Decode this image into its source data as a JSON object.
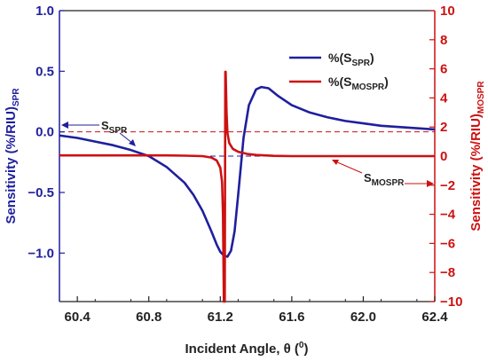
{
  "chart_data": {
    "type": "line",
    "x_axis": {
      "label_main": "Incident Angle, θ (",
      "label_sup": "0",
      "label_end": ")",
      "range": [
        60.3,
        62.4
      ],
      "ticks": [
        60.4,
        60.8,
        61.2,
        61.6,
        62.0,
        62.4
      ],
      "tick_labels": [
        "60.4",
        "60.8",
        "61.2",
        "61.6",
        "62.0",
        "62.4"
      ]
    },
    "y_left": {
      "label_main": "Sensitivity (%/RIU)",
      "label_sub": "SPR",
      "range": [
        -1.4,
        1.0
      ],
      "ticks": [
        1.0,
        0.5,
        0.0,
        -0.5,
        -1.0
      ],
      "tick_labels": [
        "1.0",
        "0.5",
        "0.0",
        "−0.5",
        "−1.0"
      ],
      "color": "#1f1f9e"
    },
    "y_right": {
      "label_main": "Sensitivity (%/RIU)",
      "label_sub": "MOSPR",
      "range": [
        -10,
        10
      ],
      "ticks": [
        10,
        8,
        6,
        4,
        2,
        0,
        -2,
        -4,
        -6,
        -8,
        -10
      ],
      "tick_labels": [
        "10",
        "8",
        "6",
        "4",
        "2",
        "0",
        "−2",
        "−4",
        "−6",
        "−8",
        "−10"
      ],
      "color": "#cc1111"
    },
    "series": [
      {
        "name_main": "%(S",
        "name_sub": "SPR",
        "name_end": ")",
        "axis": "left",
        "color": "#1f1f9e",
        "x": [
          60.3,
          60.4,
          60.5,
          60.6,
          60.7,
          60.8,
          60.9,
          61.0,
          61.05,
          61.1,
          61.15,
          61.18,
          61.2,
          61.22,
          61.24,
          61.26,
          61.28,
          61.3,
          61.33,
          61.36,
          61.4,
          61.43,
          61.47,
          61.52,
          61.6,
          61.7,
          61.8,
          61.9,
          62.0,
          62.1,
          62.2,
          62.3,
          62.4
        ],
        "y": [
          -0.03,
          -0.05,
          -0.08,
          -0.11,
          -0.15,
          -0.2,
          -0.29,
          -0.42,
          -0.52,
          -0.65,
          -0.82,
          -0.93,
          -0.99,
          -1.02,
          -1.03,
          -0.98,
          -0.82,
          -0.52,
          -0.05,
          0.22,
          0.35,
          0.37,
          0.36,
          0.3,
          0.22,
          0.16,
          0.12,
          0.09,
          0.07,
          0.05,
          0.04,
          0.03,
          0.02
        ]
      },
      {
        "name_main": "%(S",
        "name_sub": "MOSPR",
        "name_end": ")",
        "axis": "right",
        "color": "#cc1111",
        "x": [
          60.3,
          60.5,
          60.7,
          60.9,
          61.0,
          61.1,
          61.15,
          61.18,
          61.2,
          61.21,
          61.215,
          61.22,
          61.225,
          61.228,
          61.23,
          61.235,
          61.24,
          61.25,
          61.27,
          61.3,
          61.35,
          61.4,
          61.5,
          61.6,
          61.8,
          62.0,
          62.2,
          62.4
        ],
        "y": [
          0.05,
          0.05,
          0.05,
          0.05,
          0.03,
          0.0,
          -0.1,
          -0.3,
          -0.8,
          -1.8,
          -4.0,
          -10.0,
          -10.0,
          5.8,
          5.8,
          3.0,
          1.6,
          0.9,
          0.5,
          0.3,
          0.15,
          0.08,
          0.02,
          0.0,
          0.0,
          0.0,
          0.0,
          0.0
        ]
      }
    ],
    "legend": {
      "position": "top-right"
    },
    "annotations": [
      {
        "label_main": "S",
        "label_sub": "SPR",
        "points_to": "left-axis",
        "color": "#1f1f9e"
      },
      {
        "label_main": "S",
        "label_sub": "MOSPR",
        "points_to": "right-axis",
        "color": "#cc1111"
      }
    ],
    "grid": false,
    "reference_lines": [
      {
        "axis": "left",
        "value": 0.0,
        "style": "dashed",
        "color": "#cc1111"
      },
      {
        "axis": "right",
        "value": 0,
        "style": "dashed",
        "color": "#1f1f9e"
      }
    ]
  }
}
